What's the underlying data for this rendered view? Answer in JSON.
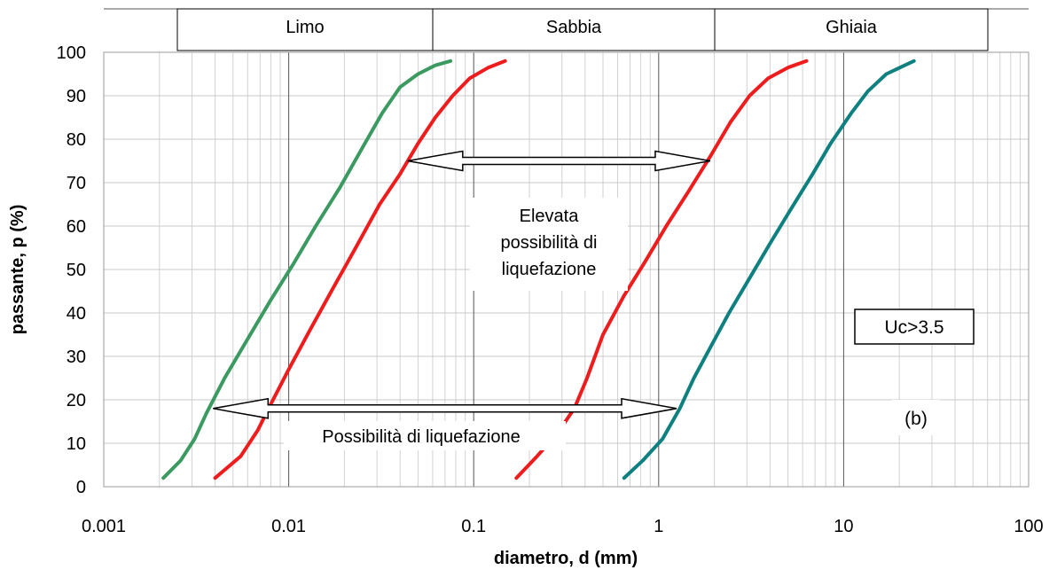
{
  "chart_data": {
    "type": "line",
    "xscale": "log",
    "xlim": [
      0.001,
      100
    ],
    "ylim": [
      0,
      100
    ],
    "xlabel": "diametro, d (mm)",
    "ylabel": "passante, p (%)",
    "xticks": [
      "0.001",
      "0.01",
      "0.1",
      "1",
      "10",
      "100"
    ],
    "yticks": [
      "0",
      "10",
      "20",
      "30",
      "40",
      "50",
      "60",
      "70",
      "80",
      "90",
      "100"
    ],
    "grid": true,
    "soil_bands": [
      {
        "label": "Limo",
        "from": 0.0025,
        "to": 0.06
      },
      {
        "label": "Sabbia",
        "from": 0.06,
        "to": 2
      },
      {
        "label": "Ghiaia",
        "from": 2,
        "to": 60
      }
    ],
    "series": [
      {
        "color": "#3a9a60",
        "points": [
          [
            0.0021,
            2
          ],
          [
            0.0026,
            6
          ],
          [
            0.0031,
            11
          ],
          [
            0.0036,
            17
          ],
          [
            0.0045,
            25
          ],
          [
            0.006,
            34
          ],
          [
            0.008,
            43
          ],
          [
            0.0105,
            51
          ],
          [
            0.014,
            60
          ],
          [
            0.019,
            69
          ],
          [
            0.025,
            78
          ],
          [
            0.032,
            86
          ],
          [
            0.04,
            92
          ],
          [
            0.05,
            95
          ],
          [
            0.062,
            97
          ],
          [
            0.075,
            98
          ]
        ]
      },
      {
        "color": "#ee1c1c",
        "points": [
          [
            0.004,
            2
          ],
          [
            0.0055,
            7
          ],
          [
            0.0068,
            13
          ],
          [
            0.008,
            19
          ],
          [
            0.01,
            27
          ],
          [
            0.013,
            36
          ],
          [
            0.017,
            45
          ],
          [
            0.023,
            55
          ],
          [
            0.031,
            65
          ],
          [
            0.04,
            72
          ],
          [
            0.05,
            79
          ],
          [
            0.062,
            85
          ],
          [
            0.077,
            90
          ],
          [
            0.095,
            94
          ],
          [
            0.12,
            96.5
          ],
          [
            0.148,
            98
          ]
        ]
      },
      {
        "color": "#ee1c1c",
        "points": [
          [
            0.17,
            2
          ],
          [
            0.22,
            7
          ],
          [
            0.28,
            12
          ],
          [
            0.35,
            18
          ],
          [
            0.41,
            25
          ],
          [
            0.5,
            35
          ],
          [
            0.65,
            44
          ],
          [
            0.85,
            52
          ],
          [
            1.1,
            60
          ],
          [
            1.45,
            68
          ],
          [
            1.9,
            76
          ],
          [
            2.45,
            84
          ],
          [
            3.1,
            90
          ],
          [
            3.9,
            94
          ],
          [
            5,
            96.5
          ],
          [
            6.3,
            98
          ]
        ]
      },
      {
        "color": "#0f8080",
        "points": [
          [
            0.65,
            2
          ],
          [
            0.82,
            6
          ],
          [
            1.05,
            11
          ],
          [
            1.3,
            18
          ],
          [
            1.55,
            25
          ],
          [
            1.9,
            32
          ],
          [
            2.4,
            40
          ],
          [
            3.1,
            48
          ],
          [
            4,
            56
          ],
          [
            5.2,
            64
          ],
          [
            6.8,
            72
          ],
          [
            8.5,
            79
          ],
          [
            11,
            86
          ],
          [
            13.5,
            91
          ],
          [
            17,
            95
          ],
          [
            24,
            98
          ]
        ]
      }
    ],
    "annotations": [
      {
        "id": "upper",
        "lines": [
          "Elevata",
          "possibilità di",
          "liquefazione"
        ],
        "arrow_x": [
          0.044,
          1.9
        ],
        "arrow_y": 75
      },
      {
        "id": "lower",
        "lines": [
          "Possibilità di liquefazione"
        ],
        "arrow_x": [
          0.0039,
          1.25
        ],
        "arrow_y": 18
      },
      {
        "id": "uc",
        "lines": [
          "Uc>3.5"
        ]
      },
      {
        "id": "panel",
        "lines": [
          "(b)"
        ]
      }
    ]
  }
}
